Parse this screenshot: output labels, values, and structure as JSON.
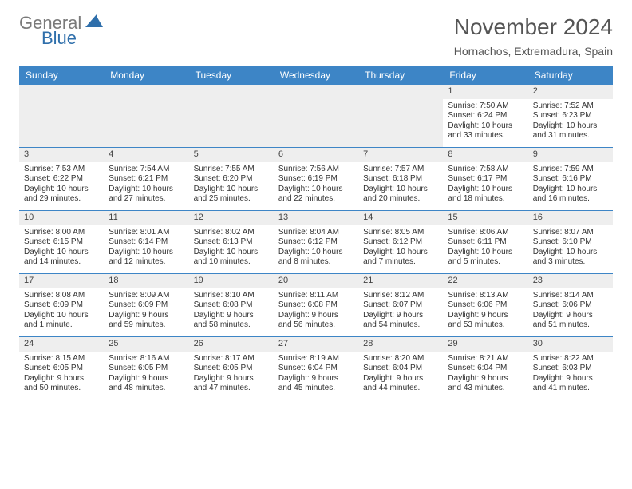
{
  "brand": {
    "word1": "General",
    "word2": "Blue"
  },
  "title": "November 2024",
  "location": "Hornachos, Extremadura, Spain",
  "colors": {
    "header_bg": "#3d85c6",
    "daynum_bg": "#eeeeee",
    "border": "#3d85c6",
    "logo_gray": "#7a7a7a",
    "logo_blue": "#2f6fab"
  },
  "dayNames": [
    "Sunday",
    "Monday",
    "Tuesday",
    "Wednesday",
    "Thursday",
    "Friday",
    "Saturday"
  ],
  "weeks": [
    [
      {
        "n": "",
        "s": "",
        "t": "",
        "d": ""
      },
      {
        "n": "",
        "s": "",
        "t": "",
        "d": ""
      },
      {
        "n": "",
        "s": "",
        "t": "",
        "d": ""
      },
      {
        "n": "",
        "s": "",
        "t": "",
        "d": ""
      },
      {
        "n": "",
        "s": "",
        "t": "",
        "d": ""
      },
      {
        "n": "1",
        "s": "Sunrise: 7:50 AM",
        "t": "Sunset: 6:24 PM",
        "d": "Daylight: 10 hours and 33 minutes."
      },
      {
        "n": "2",
        "s": "Sunrise: 7:52 AM",
        "t": "Sunset: 6:23 PM",
        "d": "Daylight: 10 hours and 31 minutes."
      }
    ],
    [
      {
        "n": "3",
        "s": "Sunrise: 7:53 AM",
        "t": "Sunset: 6:22 PM",
        "d": "Daylight: 10 hours and 29 minutes."
      },
      {
        "n": "4",
        "s": "Sunrise: 7:54 AM",
        "t": "Sunset: 6:21 PM",
        "d": "Daylight: 10 hours and 27 minutes."
      },
      {
        "n": "5",
        "s": "Sunrise: 7:55 AM",
        "t": "Sunset: 6:20 PM",
        "d": "Daylight: 10 hours and 25 minutes."
      },
      {
        "n": "6",
        "s": "Sunrise: 7:56 AM",
        "t": "Sunset: 6:19 PM",
        "d": "Daylight: 10 hours and 22 minutes."
      },
      {
        "n": "7",
        "s": "Sunrise: 7:57 AM",
        "t": "Sunset: 6:18 PM",
        "d": "Daylight: 10 hours and 20 minutes."
      },
      {
        "n": "8",
        "s": "Sunrise: 7:58 AM",
        "t": "Sunset: 6:17 PM",
        "d": "Daylight: 10 hours and 18 minutes."
      },
      {
        "n": "9",
        "s": "Sunrise: 7:59 AM",
        "t": "Sunset: 6:16 PM",
        "d": "Daylight: 10 hours and 16 minutes."
      }
    ],
    [
      {
        "n": "10",
        "s": "Sunrise: 8:00 AM",
        "t": "Sunset: 6:15 PM",
        "d": "Daylight: 10 hours and 14 minutes."
      },
      {
        "n": "11",
        "s": "Sunrise: 8:01 AM",
        "t": "Sunset: 6:14 PM",
        "d": "Daylight: 10 hours and 12 minutes."
      },
      {
        "n": "12",
        "s": "Sunrise: 8:02 AM",
        "t": "Sunset: 6:13 PM",
        "d": "Daylight: 10 hours and 10 minutes."
      },
      {
        "n": "13",
        "s": "Sunrise: 8:04 AM",
        "t": "Sunset: 6:12 PM",
        "d": "Daylight: 10 hours and 8 minutes."
      },
      {
        "n": "14",
        "s": "Sunrise: 8:05 AM",
        "t": "Sunset: 6:12 PM",
        "d": "Daylight: 10 hours and 7 minutes."
      },
      {
        "n": "15",
        "s": "Sunrise: 8:06 AM",
        "t": "Sunset: 6:11 PM",
        "d": "Daylight: 10 hours and 5 minutes."
      },
      {
        "n": "16",
        "s": "Sunrise: 8:07 AM",
        "t": "Sunset: 6:10 PM",
        "d": "Daylight: 10 hours and 3 minutes."
      }
    ],
    [
      {
        "n": "17",
        "s": "Sunrise: 8:08 AM",
        "t": "Sunset: 6:09 PM",
        "d": "Daylight: 10 hours and 1 minute."
      },
      {
        "n": "18",
        "s": "Sunrise: 8:09 AM",
        "t": "Sunset: 6:09 PM",
        "d": "Daylight: 9 hours and 59 minutes."
      },
      {
        "n": "19",
        "s": "Sunrise: 8:10 AM",
        "t": "Sunset: 6:08 PM",
        "d": "Daylight: 9 hours and 58 minutes."
      },
      {
        "n": "20",
        "s": "Sunrise: 8:11 AM",
        "t": "Sunset: 6:08 PM",
        "d": "Daylight: 9 hours and 56 minutes."
      },
      {
        "n": "21",
        "s": "Sunrise: 8:12 AM",
        "t": "Sunset: 6:07 PM",
        "d": "Daylight: 9 hours and 54 minutes."
      },
      {
        "n": "22",
        "s": "Sunrise: 8:13 AM",
        "t": "Sunset: 6:06 PM",
        "d": "Daylight: 9 hours and 53 minutes."
      },
      {
        "n": "23",
        "s": "Sunrise: 8:14 AM",
        "t": "Sunset: 6:06 PM",
        "d": "Daylight: 9 hours and 51 minutes."
      }
    ],
    [
      {
        "n": "24",
        "s": "Sunrise: 8:15 AM",
        "t": "Sunset: 6:05 PM",
        "d": "Daylight: 9 hours and 50 minutes."
      },
      {
        "n": "25",
        "s": "Sunrise: 8:16 AM",
        "t": "Sunset: 6:05 PM",
        "d": "Daylight: 9 hours and 48 minutes."
      },
      {
        "n": "26",
        "s": "Sunrise: 8:17 AM",
        "t": "Sunset: 6:05 PM",
        "d": "Daylight: 9 hours and 47 minutes."
      },
      {
        "n": "27",
        "s": "Sunrise: 8:19 AM",
        "t": "Sunset: 6:04 PM",
        "d": "Daylight: 9 hours and 45 minutes."
      },
      {
        "n": "28",
        "s": "Sunrise: 8:20 AM",
        "t": "Sunset: 6:04 PM",
        "d": "Daylight: 9 hours and 44 minutes."
      },
      {
        "n": "29",
        "s": "Sunrise: 8:21 AM",
        "t": "Sunset: 6:04 PM",
        "d": "Daylight: 9 hours and 43 minutes."
      },
      {
        "n": "30",
        "s": "Sunrise: 8:22 AM",
        "t": "Sunset: 6:03 PM",
        "d": "Daylight: 9 hours and 41 minutes."
      }
    ]
  ]
}
